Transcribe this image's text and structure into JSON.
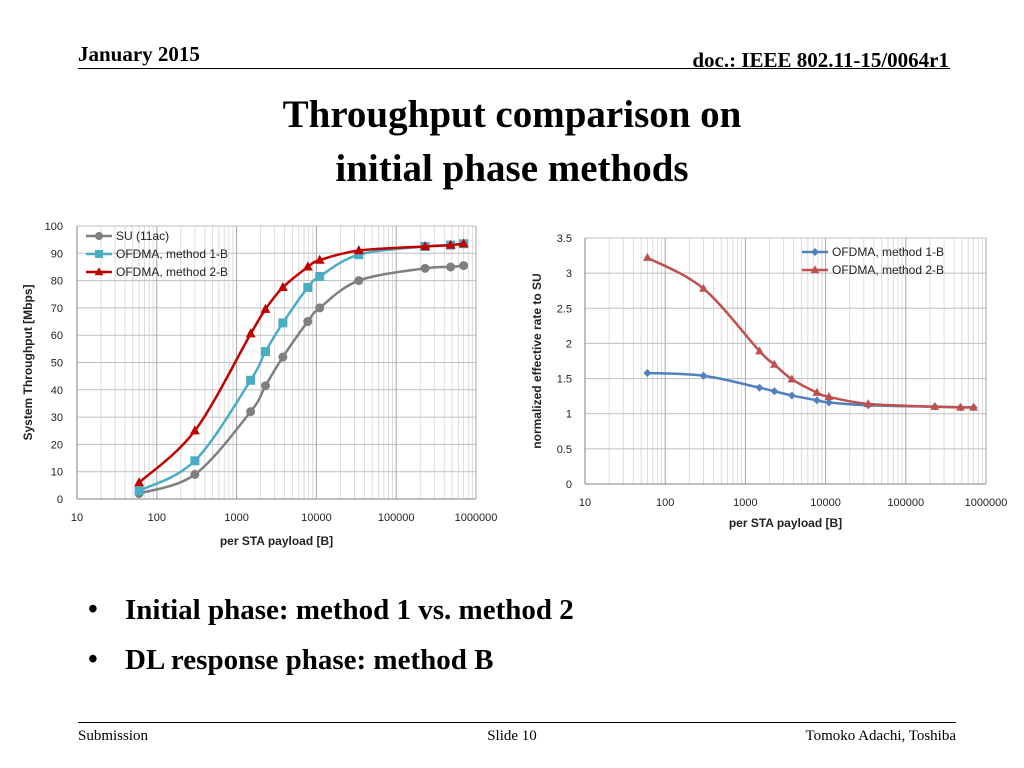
{
  "header": {
    "date": "January 2015",
    "doc": "doc.: IEEE 802.11-15/0064r1"
  },
  "title": {
    "line1": "Throughput comparison on",
    "line2": "initial phase methods"
  },
  "bullets": [
    "Initial phase: method 1 vs. method 2",
    "DL response phase: method B"
  ],
  "footer": {
    "left": "Submission",
    "center": "Slide 10",
    "right": "Tomoko Adachi, Toshiba"
  },
  "chart_data": [
    {
      "type": "line",
      "xlabel": "per STA payload [B]",
      "ylabel": "System Throughput [Mbps]",
      "xscale": "log",
      "xlim": [
        10,
        1000000
      ],
      "ylim": [
        0,
        100
      ],
      "xticks": [
        "10",
        "100",
        "1000",
        "10000",
        "100000",
        "1000000"
      ],
      "yticks": [
        "0",
        "10",
        "20",
        "30",
        "40",
        "50",
        "60",
        "70",
        "80",
        "90",
        "100"
      ],
      "grid": true,
      "legend": "top-left",
      "series": [
        {
          "name": "SU (11ac)",
          "color": "#7f7f7f",
          "marker": "circle",
          "x": [
            60,
            300,
            1500,
            2300,
            3800,
            7800,
            11000,
            34000,
            230000,
            480000,
            700000
          ],
          "y": [
            2,
            9,
            32,
            41.5,
            52,
            65,
            70,
            80,
            84.5,
            85,
            85.5
          ]
        },
        {
          "name": "OFDMA, method 1-B",
          "color": "#4bacc6",
          "marker": "square",
          "x": [
            60,
            300,
            1500,
            2300,
            3800,
            7800,
            11000,
            34000,
            230000,
            480000,
            700000
          ],
          "y": [
            3,
            14,
            43.5,
            54,
            64.5,
            77.5,
            81.5,
            89.5,
            92.5,
            93,
            93.5
          ]
        },
        {
          "name": "OFDMA, method 2-B",
          "color": "#c00000",
          "marker": "triangle",
          "x": [
            60,
            300,
            1500,
            2300,
            3800,
            7800,
            11000,
            34000,
            230000,
            480000,
            700000
          ],
          "y": [
            6,
            25,
            60.5,
            69.5,
            77.5,
            85,
            87.5,
            91,
            92.5,
            93,
            93.5
          ]
        }
      ]
    },
    {
      "type": "line",
      "xlabel": "per STA payload [B]",
      "ylabel": "normalized effective rate to SU",
      "xscale": "log",
      "xlim": [
        10,
        1000000
      ],
      "ylim": [
        0,
        3.5
      ],
      "xticks": [
        "10",
        "100",
        "1000",
        "10000",
        "100000",
        "1000000"
      ],
      "yticks": [
        "0",
        "0.5",
        "1",
        "1.5",
        "2",
        "2.5",
        "3",
        "3.5"
      ],
      "grid": true,
      "legend": "top-right",
      "series": [
        {
          "name": "OFDMA, method 1-B",
          "color": "#4f81bd",
          "marker": "diamond",
          "x": [
            60,
            300,
            1500,
            2300,
            3800,
            7800,
            11000,
            34000,
            230000,
            480000,
            700000
          ],
          "y": [
            1.58,
            1.54,
            1.37,
            1.32,
            1.26,
            1.19,
            1.16,
            1.12,
            1.1,
            1.09,
            1.09
          ]
        },
        {
          "name": "OFDMA, method 2-B",
          "color": "#c0504d",
          "marker": "triangle",
          "x": [
            60,
            300,
            1500,
            2300,
            3800,
            7800,
            11000,
            34000,
            230000,
            480000,
            700000
          ],
          "y": [
            3.22,
            2.78,
            1.89,
            1.7,
            1.49,
            1.3,
            1.24,
            1.14,
            1.1,
            1.09,
            1.09
          ]
        }
      ]
    }
  ]
}
